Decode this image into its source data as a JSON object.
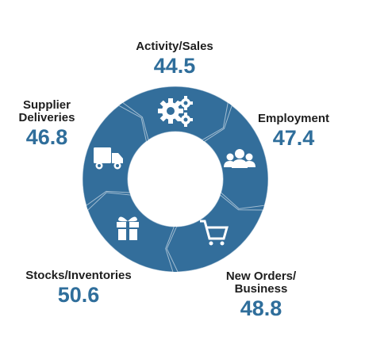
{
  "chart_data": {
    "type": "pie",
    "categories": [
      "Activity/Sales",
      "Employment",
      "New Orders/ Business",
      "Stocks/Inventories",
      "Supplier Deliveries"
    ],
    "series": [
      {
        "values": [
          44.5,
          47.4,
          48.8,
          50.6,
          46.8
        ]
      }
    ]
  },
  "labels": {
    "activity": {
      "name": "Activity/Sales",
      "value": "44.5"
    },
    "employment": {
      "name": "Employment",
      "value": "47.4"
    },
    "new_orders": {
      "line1": "New Orders/",
      "line2": "Business",
      "value": "48.8"
    },
    "stocks": {
      "name": "Stocks/Inventories",
      "value": "50.6"
    },
    "supplier": {
      "line1": "Supplier",
      "line2": "Deliveries",
      "value": "46.8"
    }
  },
  "icons": {
    "activity": "gears-icon",
    "employment": "people-group-icon",
    "new_orders": "shopping-cart-icon",
    "stocks": "gift-box-icon",
    "supplier": "delivery-truck-icon"
  },
  "colors": {
    "ring": "#336e9b",
    "value_text": "#2f6e9b",
    "icon": "#ffffff"
  }
}
